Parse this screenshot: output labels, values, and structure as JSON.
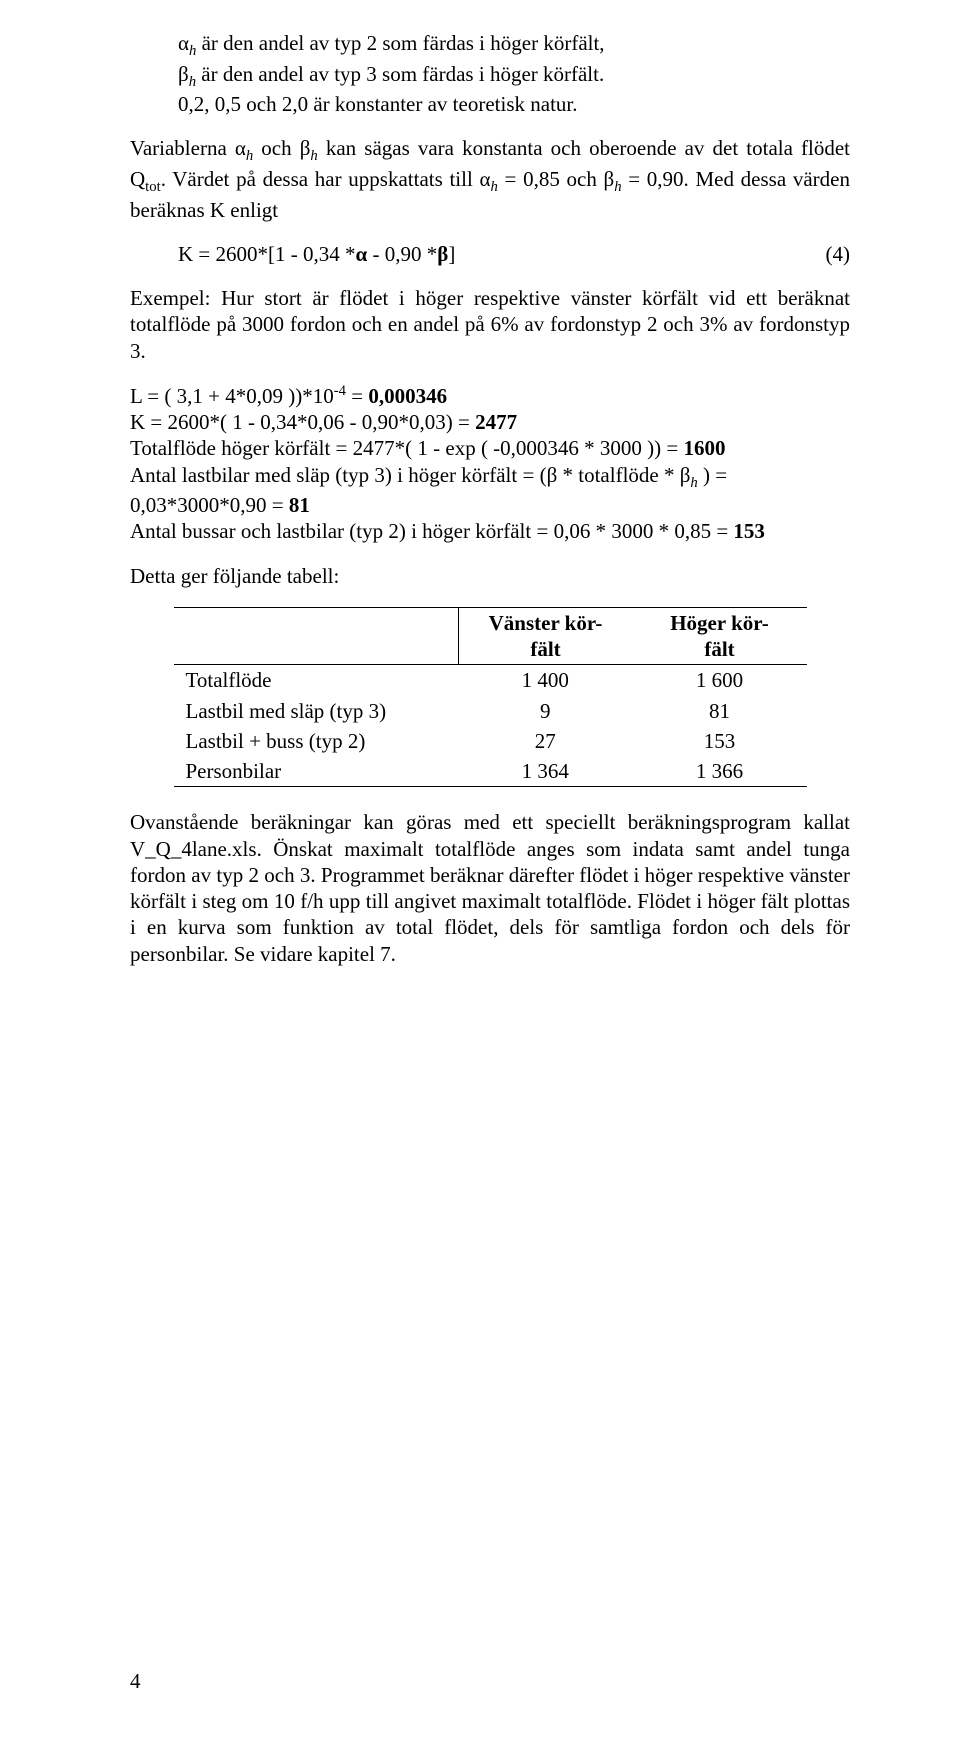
{
  "defs": {
    "alpha_line": "α<span class=\"sub-italic\">h</span> är den andel av typ 2 som färdas i höger körfält,",
    "beta_line": "β<span class=\"sub-italic\">h</span> är den andel av typ 3 som färdas i höger körfält.",
    "const_line": "0,2, 0,5 och 2,0 är konstanter av teoretisk natur."
  },
  "para2": "Variablerna α<span class=\"sub-italic\">h</span> och β<span class=\"sub-italic\">h</span> kan sägas vara konstanta och oberoende av det totala flödet Q<span class=\"sub\">tot</span>. Värdet på dessa har uppskattats till α<span class=\"sub-italic\">h</span> = 0,85 och β<span class=\"sub-italic\">h</span> = 0,90. Med dessa värden beräknas K enligt",
  "formula_K": {
    "text": "K = 2600*[1 - 0,34 *<span class=\"bold\">α</span> - 0,90 *<span class=\"bold\">β</span>]",
    "num": "(4)"
  },
  "para3": "Exempel: Hur stort är flödet i höger respektive vänster körfält vid ett beräknat totalflöde på 3000 fordon och en andel på 6% av fordonstyp 2 och 3% av fordonstyp 3.",
  "calc_block": "L = ( 3,1 + 4*0,09 ))*10<span class=\"sup\">-4</span> = <span class=\"bold\">0,000346</span><br>K = 2600*( 1 - 0,34*0,06 - 0,90*0,03) = <span class=\"bold\">2477</span><br>Totalflöde höger körfält  = 2477*( 1 - exp ( -0,000346 * 3000 )) = <span class=\"bold\">1600</span><br>Antal lastbilar med släp (typ 3) i höger körfält = (β * totalflöde * β<span class=\"sub-italic\">h</span> ) = 0,03*3000*0,90 = <span class=\"bold\">81</span><br>Antal bussar och lastbilar (typ 2) i höger körfält = 0,06 * 3000 * 0,85 = <span class=\"bold\">153</span>",
  "table_intro": "Detta ger följande tabell:",
  "table": {
    "headers": [
      "",
      "Vänster kör-<br>fält",
      "Höger kör-<br>fält"
    ],
    "rows": [
      [
        "Totalflöde",
        "1 400",
        "1 600"
      ],
      [
        "Lastbil med släp (typ 3)",
        "9",
        "81"
      ],
      [
        "Lastbil + buss (typ 2)",
        "27",
        "153"
      ],
      [
        "Personbilar",
        "1 364",
        "1 366"
      ]
    ]
  },
  "para4": "Ovanstående beräkningar kan göras med ett speciellt beräkningsprogram kallat V_Q_4lane.xls. Önskat maximalt totalflöde anges som indata samt andel tunga fordon av typ 2 och 3. Programmet beräknar därefter flödet i höger respektive vänster körfält i steg om 10 f/h upp till angivet maximalt totalflöde. Flödet i höger fält plottas i en kurva som funktion av total flödet, dels för samtliga fordon och dels för personbilar. Se vidare kapitel 7.",
  "page_number": "4"
}
